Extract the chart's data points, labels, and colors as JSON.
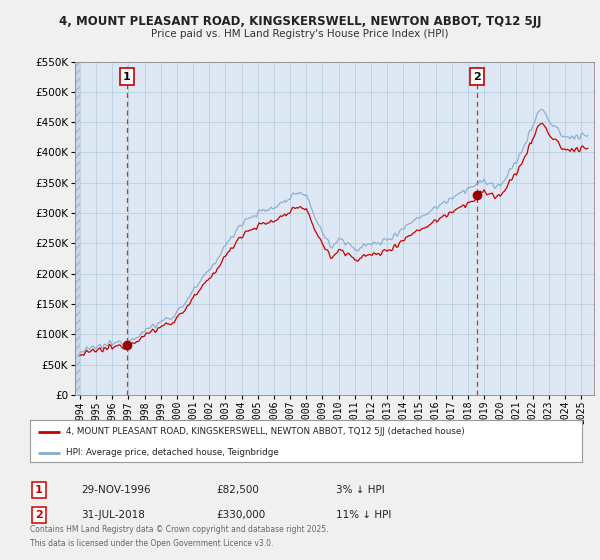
{
  "title1": "4, MOUNT PLEASANT ROAD, KINGSKERSWELL, NEWTON ABBOT, TQ12 5JJ",
  "title2": "Price paid vs. HM Land Registry's House Price Index (HPI)",
  "legend_label1": "4, MOUNT PLEASANT ROAD, KINGSKERSWELL, NEWTON ABBOT, TQ12 5JJ (detached house)",
  "legend_label2": "HPI: Average price, detached house, Teignbridge",
  "annotation1_date": "29-NOV-1996",
  "annotation1_price": "£82,500",
  "annotation1_hpi": "3% ↓ HPI",
  "annotation2_date": "31-JUL-2018",
  "annotation2_price": "£330,000",
  "annotation2_hpi": "11% ↓ HPI",
  "footer": "Contains HM Land Registry data © Crown copyright and database right 2025.\nThis data is licensed under the Open Government Licence v3.0.",
  "line1_color": "#cc0000",
  "line2_color": "#88aacc",
  "marker_color": "#990000",
  "background_color": "#f0f0f0",
  "plot_bg_color": "#dde8f4",
  "hatch_color": "#c8d8e8",
  "ylim": [
    0,
    550000
  ],
  "yticks": [
    0,
    50000,
    100000,
    150000,
    200000,
    250000,
    300000,
    350000,
    400000,
    450000,
    500000,
    550000
  ],
  "sale1_x": 1996.917,
  "sale1_y": 82500,
  "sale2_x": 2018.583,
  "sale2_y": 330000,
  "xlim_left": 1993.7,
  "xlim_right": 2025.8
}
